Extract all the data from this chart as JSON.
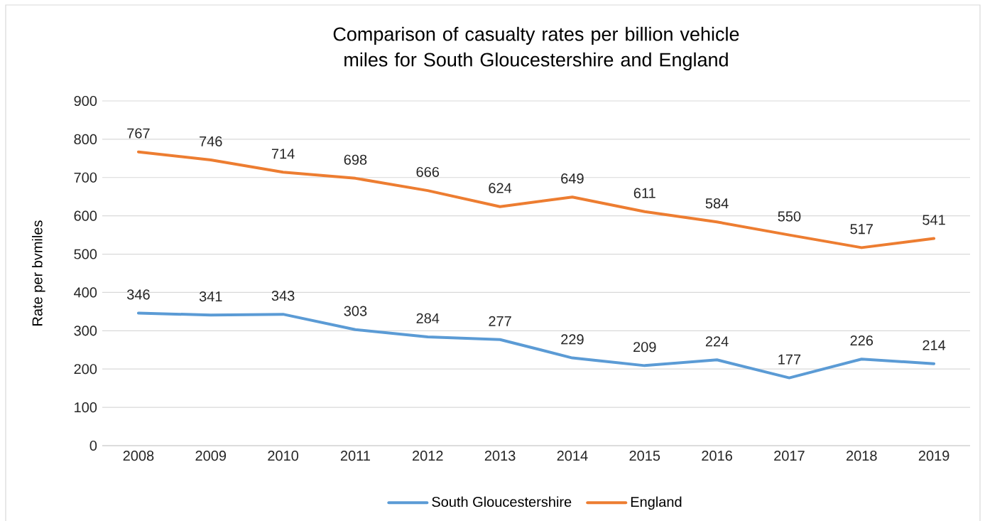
{
  "chart_data": {
    "type": "line",
    "title": "Comparison of casualty rates per billion vehicle miles for South Gloucestershire and England",
    "ylabel": "Rate per bvmiles",
    "categories": [
      "2008",
      "2009",
      "2010",
      "2011",
      "2012",
      "2013",
      "2014",
      "2015",
      "2016",
      "2017",
      "2018",
      "2019"
    ],
    "series": [
      {
        "name": "South Gloucestershire",
        "color": "#5b9bd5",
        "values": [
          346,
          341,
          343,
          303,
          284,
          277,
          229,
          209,
          224,
          177,
          226,
          214
        ]
      },
      {
        "name": "England",
        "color": "#ed7d31",
        "values": [
          767,
          746,
          714,
          698,
          666,
          624,
          649,
          611,
          584,
          550,
          517,
          541
        ]
      }
    ],
    "ylim": [
      0,
      900
    ],
    "yticks": [
      0,
      100,
      200,
      300,
      400,
      500,
      600,
      700,
      800,
      900
    ],
    "grid": "y",
    "legend": "bottom",
    "data_labels": true,
    "marker": "none",
    "line_style": "solid"
  }
}
